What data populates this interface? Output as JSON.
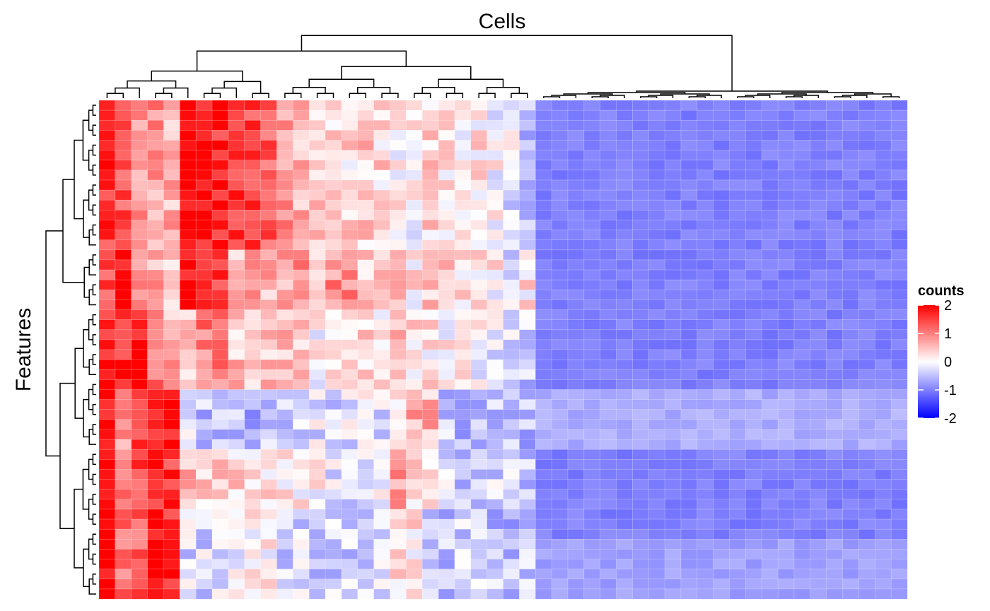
{
  "chart_data": {
    "type": "heatmap",
    "title": "Cells",
    "ylabel": "Features",
    "n_cols": 50,
    "n_rows": 50,
    "legend": {
      "title": "counts",
      "placement": "right",
      "ticks": [
        2,
        1,
        0,
        -1,
        -2
      ],
      "range": [
        -2,
        2
      ],
      "colors": {
        "low": "#0000ff",
        "mid": "#ffffff",
        "high": "#ff0000"
      }
    },
    "value_layout": {
      "right_block_start_col": 27,
      "right_block_value": -1,
      "row_clusters": [
        {
          "rows": [
            0,
            14
          ],
          "col_profile": [
            1.6,
            1.4,
            0.9,
            0.8,
            0.6,
            2.0,
            1.8,
            1.7,
            1.5,
            1.5,
            1.3,
            0.8,
            0.6,
            0.5,
            0.4,
            0.3,
            0.4,
            0.3,
            0.1,
            0.0,
            0.3,
            0.2,
            0.1,
            0.2,
            0.0,
            -0.2,
            -0.6
          ]
        },
        {
          "rows": [
            15,
            20
          ],
          "col_profile": [
            1.3,
            1.8,
            1.0,
            0.7,
            0.3,
            2.0,
            1.5,
            1.6,
            0.6,
            0.9,
            0.6,
            0.7,
            0.8,
            0.5,
            0.9,
            0.9,
            0.4,
            0.5,
            0.6,
            0.2,
            0.4,
            0.4,
            0.3,
            0.2,
            0.1,
            -0.2,
            0.2
          ]
        },
        {
          "rows": [
            21,
            28
          ],
          "col_profile": [
            1.8,
            1.7,
            1.9,
            1.2,
            0.6,
            0.5,
            1.0,
            0.9,
            0.5,
            0.4,
            0.4,
            0.6,
            0.3,
            0.1,
            0.2,
            0.1,
            0.3,
            0.2,
            0.6,
            0.3,
            0.2,
            0.1,
            0.2,
            0.0,
            -0.2,
            -0.3,
            -0.4
          ]
        },
        {
          "rows": [
            29,
            34
          ],
          "col_profile": [
            1.9,
            0.8,
            1.5,
            1.8,
            1.7,
            -0.3,
            -0.5,
            -0.4,
            -0.5,
            -0.6,
            -0.5,
            -0.4,
            -0.3,
            -0.2,
            -0.4,
            -0.2,
            0.0,
            -0.2,
            0.2,
            0.7,
            0.6,
            -0.4,
            -0.5,
            -0.4,
            -0.5,
            -0.5,
            -0.6
          ]
        },
        {
          "rows": [
            35,
            40
          ],
          "col_profile": [
            1.9,
            1.2,
            1.4,
            1.7,
            1.6,
            0.6,
            0.3,
            0.4,
            0.3,
            0.2,
            0.3,
            0.1,
            0.2,
            0.0,
            -0.2,
            -0.3,
            -0.2,
            -0.1,
            0.7,
            0.3,
            0.2,
            -0.3,
            -0.4,
            -0.3,
            -0.3,
            -0.3,
            -0.4
          ]
        },
        {
          "rows": [
            41,
            49
          ],
          "col_profile": [
            2.0,
            1.1,
            1.3,
            2.0,
            1.6,
            -0.3,
            -0.3,
            -0.2,
            -0.1,
            0.0,
            0.1,
            -0.3,
            -0.3,
            -0.4,
            -0.4,
            -0.4,
            -0.3,
            -0.2,
            0.3,
            0.2,
            -0.4,
            -0.5,
            -0.4,
            -0.4,
            -0.5,
            -0.5,
            -0.5
          ]
        }
      ]
    }
  }
}
